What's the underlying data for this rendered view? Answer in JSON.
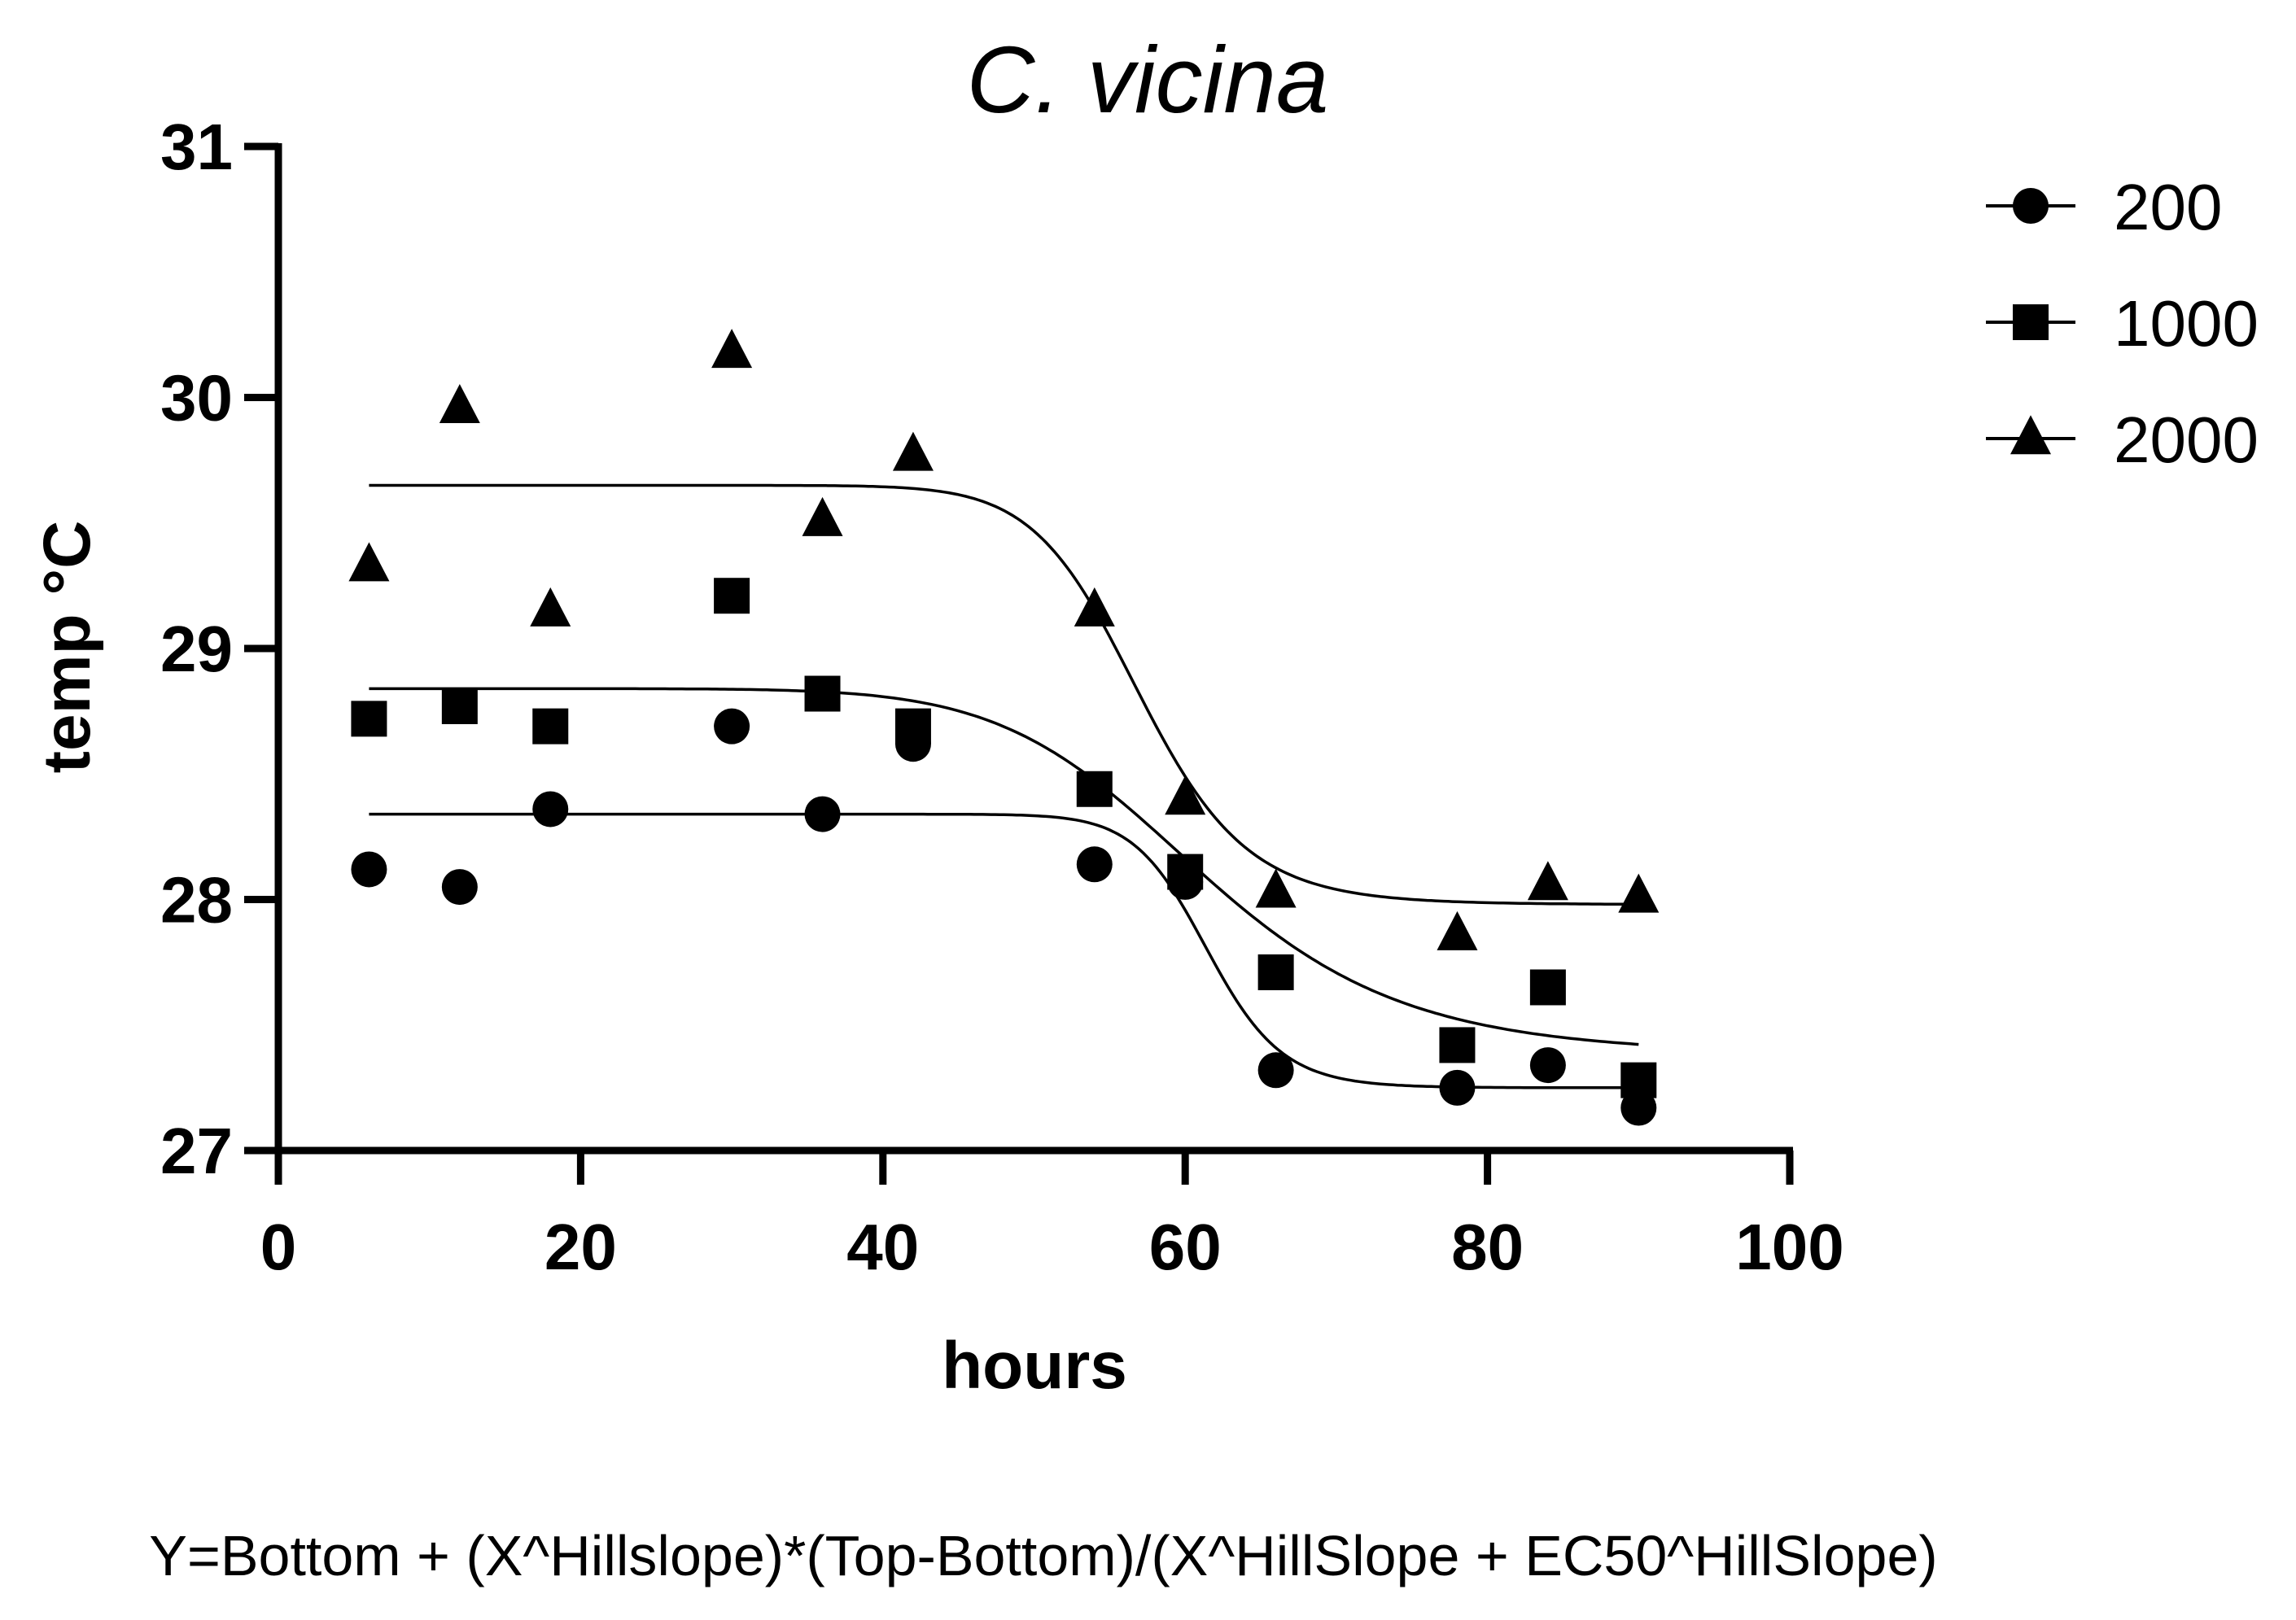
{
  "chart_data": {
    "type": "scatter",
    "title": "C. vicina",
    "xlabel": "hours",
    "ylabel": "temp °C",
    "xlim": [
      0,
      100
    ],
    "ylim": [
      27,
      31
    ],
    "xticks": [
      0,
      20,
      40,
      60,
      80,
      100
    ],
    "yticks": [
      27,
      28,
      29,
      30,
      31
    ],
    "legend_position": "top-right",
    "grid": false,
    "series": [
      {
        "name": "200",
        "marker": "circle",
        "x": [
          6,
          12,
          18,
          30,
          36,
          42,
          54,
          60,
          66,
          78,
          84,
          90
        ],
        "y": [
          28.12,
          28.05,
          28.36,
          28.69,
          28.34,
          28.62,
          28.14,
          28.07,
          27.32,
          27.25,
          27.34,
          27.17
        ],
        "fit": {
          "bottom": 27.25,
          "top": 28.34,
          "ec50": 61.5,
          "hillslope": 25,
          "x_range": [
            6,
            90
          ]
        }
      },
      {
        "name": "1000",
        "marker": "square",
        "x": [
          6,
          12,
          18,
          30,
          36,
          42,
          54,
          60,
          66,
          78,
          84,
          90
        ],
        "y": [
          28.72,
          28.77,
          28.69,
          29.21,
          28.82,
          28.69,
          28.44,
          28.11,
          27.71,
          27.42,
          27.65,
          27.28
        ],
        "fit": {
          "bottom": 27.38,
          "top": 28.84,
          "ec50": 61.0,
          "hillslope": 9,
          "x_range": [
            6,
            90
          ]
        }
      },
      {
        "name": "2000",
        "marker": "triangle",
        "x": [
          6,
          12,
          18,
          30,
          36,
          42,
          54,
          60,
          66,
          78,
          84,
          90
        ],
        "y": [
          29.33,
          29.96,
          29.15,
          30.18,
          29.51,
          29.77,
          29.15,
          28.4,
          28.03,
          27.86,
          28.06,
          28.01
        ],
        "fit": {
          "bottom": 27.98,
          "top": 29.65,
          "ec50": 57.0,
          "hillslope": 16,
          "x_range": [
            6,
            90
          ]
        }
      }
    ],
    "annotation": "Y=Bottom + (X^Hillslope)*(Top-Bottom)/(X^HillSlope + EC50^HillSlope)"
  }
}
